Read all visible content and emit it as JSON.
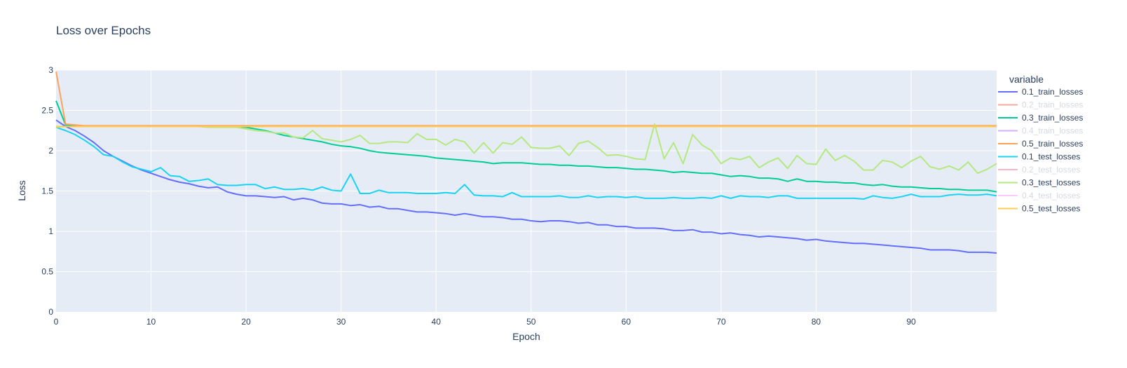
{
  "chart_data": {
    "type": "line",
    "title": "Loss over Epochs",
    "xlabel": "Epoch",
    "ylabel": "Loss",
    "xlim": [
      0,
      99
    ],
    "ylim": [
      0,
      3
    ],
    "xticks": [
      0,
      10,
      20,
      30,
      40,
      50,
      60,
      70,
      80,
      90
    ],
    "yticks": [
      0,
      0.5,
      1,
      1.5,
      2,
      2.5,
      3
    ],
    "ytick_labels": [
      "0",
      "0.5",
      "1",
      "1.5",
      "2",
      "2.5",
      "3"
    ],
    "grid": true,
    "plot_background": "#e5ecf6",
    "legend": {
      "title": "variable",
      "position": "right"
    },
    "series": [
      {
        "name": "0.1_train_losses",
        "color": "#636efa",
        "visible": true,
        "values": [
          2.38,
          2.3,
          2.25,
          2.18,
          2.1,
          2.0,
          1.93,
          1.87,
          1.81,
          1.76,
          1.72,
          1.68,
          1.64,
          1.61,
          1.59,
          1.56,
          1.54,
          1.55,
          1.49,
          1.46,
          1.44,
          1.44,
          1.43,
          1.42,
          1.43,
          1.39,
          1.41,
          1.39,
          1.35,
          1.34,
          1.34,
          1.32,
          1.33,
          1.3,
          1.31,
          1.28,
          1.28,
          1.26,
          1.24,
          1.24,
          1.23,
          1.22,
          1.2,
          1.22,
          1.2,
          1.18,
          1.18,
          1.17,
          1.15,
          1.15,
          1.13,
          1.12,
          1.13,
          1.13,
          1.12,
          1.1,
          1.11,
          1.08,
          1.08,
          1.06,
          1.06,
          1.04,
          1.04,
          1.04,
          1.03,
          1.01,
          1.01,
          1.02,
          0.99,
          0.99,
          0.97,
          0.98,
          0.96,
          0.95,
          0.93,
          0.94,
          0.93,
          0.92,
          0.91,
          0.89,
          0.9,
          0.88,
          0.87,
          0.86,
          0.85,
          0.85,
          0.84,
          0.83,
          0.82,
          0.81,
          0.8,
          0.79,
          0.77,
          0.77,
          0.77,
          0.76,
          0.74,
          0.74,
          0.74,
          0.73
        ]
      },
      {
        "name": "0.2_train_losses",
        "color": "#ef553b",
        "visible": false,
        "values": []
      },
      {
        "name": "0.3_train_losses",
        "color": "#00cc96",
        "visible": true,
        "values": [
          2.62,
          2.32,
          2.31,
          2.3,
          2.3,
          2.3,
          2.3,
          2.3,
          2.3,
          2.3,
          2.3,
          2.3,
          2.3,
          2.3,
          2.3,
          2.3,
          2.3,
          2.3,
          2.3,
          2.3,
          2.29,
          2.27,
          2.25,
          2.22,
          2.19,
          2.17,
          2.15,
          2.13,
          2.11,
          2.08,
          2.06,
          2.05,
          2.03,
          2.0,
          1.98,
          1.97,
          1.96,
          1.95,
          1.94,
          1.93,
          1.91,
          1.9,
          1.89,
          1.88,
          1.87,
          1.86,
          1.84,
          1.85,
          1.85,
          1.85,
          1.84,
          1.83,
          1.83,
          1.82,
          1.82,
          1.81,
          1.81,
          1.8,
          1.79,
          1.79,
          1.78,
          1.77,
          1.77,
          1.76,
          1.75,
          1.73,
          1.74,
          1.73,
          1.72,
          1.72,
          1.7,
          1.68,
          1.69,
          1.68,
          1.66,
          1.66,
          1.65,
          1.62,
          1.65,
          1.62,
          1.62,
          1.61,
          1.61,
          1.6,
          1.6,
          1.58,
          1.57,
          1.58,
          1.56,
          1.55,
          1.55,
          1.54,
          1.53,
          1.53,
          1.52,
          1.52,
          1.51,
          1.51,
          1.51,
          1.49
        ]
      },
      {
        "name": "0.4_train_losses",
        "color": "#ab63fa",
        "visible": false,
        "values": []
      },
      {
        "name": "0.5_train_losses",
        "color": "#ffa15a",
        "visible": true,
        "values": [
          2.98,
          2.33,
          2.32,
          2.31,
          2.31,
          2.31,
          2.31,
          2.31,
          2.31,
          2.31,
          2.31,
          2.31,
          2.31,
          2.31,
          2.31,
          2.31,
          2.31,
          2.31,
          2.31,
          2.31,
          2.31,
          2.31,
          2.31,
          2.31,
          2.31,
          2.31,
          2.31,
          2.31,
          2.31,
          2.31,
          2.31,
          2.31,
          2.31,
          2.31,
          2.31,
          2.31,
          2.31,
          2.31,
          2.31,
          2.31,
          2.31,
          2.31,
          2.31,
          2.31,
          2.31,
          2.31,
          2.31,
          2.31,
          2.31,
          2.31,
          2.31,
          2.31,
          2.31,
          2.31,
          2.31,
          2.31,
          2.31,
          2.31,
          2.31,
          2.31,
          2.31,
          2.31,
          2.31,
          2.31,
          2.31,
          2.31,
          2.31,
          2.31,
          2.31,
          2.31,
          2.31,
          2.31,
          2.31,
          2.31,
          2.31,
          2.31,
          2.31,
          2.31,
          2.31,
          2.31,
          2.31,
          2.31,
          2.31,
          2.31,
          2.31,
          2.31,
          2.31,
          2.31,
          2.31,
          2.31,
          2.31,
          2.31,
          2.31,
          2.31,
          2.31,
          2.31,
          2.31,
          2.31,
          2.31,
          2.31
        ]
      },
      {
        "name": "0.1_test_losses",
        "color": "#19d3f3",
        "visible": true,
        "values": [
          2.29,
          2.25,
          2.2,
          2.13,
          2.05,
          1.95,
          1.93,
          1.86,
          1.8,
          1.77,
          1.74,
          1.79,
          1.69,
          1.68,
          1.62,
          1.63,
          1.65,
          1.58,
          1.57,
          1.57,
          1.58,
          1.58,
          1.53,
          1.55,
          1.52,
          1.52,
          1.53,
          1.51,
          1.55,
          1.51,
          1.5,
          1.71,
          1.47,
          1.47,
          1.51,
          1.48,
          1.48,
          1.48,
          1.47,
          1.47,
          1.47,
          1.48,
          1.47,
          1.58,
          1.45,
          1.44,
          1.44,
          1.43,
          1.48,
          1.43,
          1.43,
          1.43,
          1.43,
          1.44,
          1.42,
          1.42,
          1.44,
          1.42,
          1.43,
          1.43,
          1.42,
          1.43,
          1.41,
          1.41,
          1.41,
          1.42,
          1.41,
          1.41,
          1.42,
          1.41,
          1.44,
          1.41,
          1.44,
          1.43,
          1.43,
          1.42,
          1.44,
          1.44,
          1.41,
          1.41,
          1.41,
          1.41,
          1.41,
          1.41,
          1.41,
          1.4,
          1.44,
          1.42,
          1.41,
          1.43,
          1.46,
          1.43,
          1.43,
          1.43,
          1.45,
          1.46,
          1.45,
          1.45,
          1.46,
          1.44
        ]
      },
      {
        "name": "0.2_test_losses",
        "color": "#ff6692",
        "visible": false,
        "values": []
      },
      {
        "name": "0.3_test_losses",
        "color": "#b6e880",
        "visible": true,
        "values": [
          2.29,
          2.3,
          2.3,
          2.3,
          2.3,
          2.3,
          2.3,
          2.3,
          2.3,
          2.3,
          2.3,
          2.3,
          2.3,
          2.3,
          2.3,
          2.3,
          2.29,
          2.29,
          2.29,
          2.29,
          2.27,
          2.25,
          2.24,
          2.22,
          2.22,
          2.17,
          2.16,
          2.25,
          2.15,
          2.13,
          2.11,
          2.14,
          2.19,
          2.09,
          2.09,
          2.11,
          2.11,
          2.1,
          2.21,
          2.14,
          2.14,
          2.07,
          2.14,
          2.11,
          1.97,
          2.1,
          1.97,
          2.1,
          2.08,
          2.17,
          2.04,
          2.03,
          2.03,
          2.06,
          1.94,
          2.09,
          2.12,
          2.04,
          1.94,
          1.95,
          1.93,
          1.9,
          1.89,
          2.33,
          1.9,
          2.1,
          1.84,
          2.2,
          2.07,
          2.0,
          1.84,
          1.91,
          1.89,
          1.93,
          1.79,
          1.86,
          1.91,
          1.78,
          1.94,
          1.84,
          1.83,
          2.02,
          1.88,
          1.94,
          1.87,
          1.76,
          1.76,
          1.88,
          1.86,
          1.79,
          1.87,
          1.93,
          1.8,
          1.77,
          1.81,
          1.76,
          1.86,
          1.72,
          1.77,
          1.84
        ]
      },
      {
        "name": "0.4_test_losses",
        "color": "#ff97ff",
        "visible": false,
        "values": []
      },
      {
        "name": "0.5_test_losses",
        "color": "#fecb52",
        "visible": true,
        "values": [
          2.3,
          2.3,
          2.3,
          2.3,
          2.3,
          2.3,
          2.3,
          2.3,
          2.3,
          2.3,
          2.3,
          2.3,
          2.3,
          2.3,
          2.3,
          2.3,
          2.3,
          2.3,
          2.3,
          2.3,
          2.3,
          2.3,
          2.3,
          2.3,
          2.3,
          2.3,
          2.3,
          2.3,
          2.3,
          2.3,
          2.3,
          2.3,
          2.3,
          2.3,
          2.3,
          2.3,
          2.3,
          2.3,
          2.3,
          2.3,
          2.3,
          2.3,
          2.3,
          2.3,
          2.3,
          2.3,
          2.3,
          2.3,
          2.3,
          2.3,
          2.3,
          2.3,
          2.3,
          2.3,
          2.3,
          2.3,
          2.3,
          2.3,
          2.3,
          2.3,
          2.3,
          2.3,
          2.3,
          2.3,
          2.3,
          2.3,
          2.3,
          2.3,
          2.3,
          2.3,
          2.3,
          2.3,
          2.3,
          2.3,
          2.3,
          2.3,
          2.3,
          2.3,
          2.3,
          2.3,
          2.3,
          2.3,
          2.3,
          2.3,
          2.3,
          2.3,
          2.3,
          2.3,
          2.3,
          2.3,
          2.3,
          2.3,
          2.3,
          2.3,
          2.3,
          2.3,
          2.3,
          2.3,
          2.3,
          2.3
        ]
      }
    ]
  }
}
